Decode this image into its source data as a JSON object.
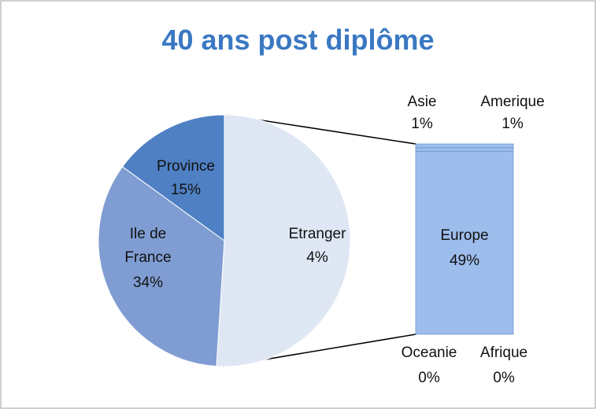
{
  "chart_data": {
    "type": "pie-of-bar",
    "title": "40 ans post diplôme",
    "pie": {
      "categories": [
        "Province",
        "Ile de France",
        "Etranger"
      ],
      "values": [
        15,
        34,
        4
      ],
      "value_labels": [
        "15%",
        "34%",
        "4%"
      ],
      "colors": [
        "#4f80c4",
        "#7f9dd2",
        "#dfe7f4"
      ]
    },
    "bar": {
      "categories": [
        "Europe",
        "Asie",
        "Amerique",
        "Oceanie",
        "Afrique"
      ],
      "values": [
        49,
        1,
        1,
        0,
        0
      ],
      "value_labels": [
        "49%",
        "1%",
        "1%",
        "0%",
        "0%"
      ],
      "color": "#9dbdec"
    }
  }
}
